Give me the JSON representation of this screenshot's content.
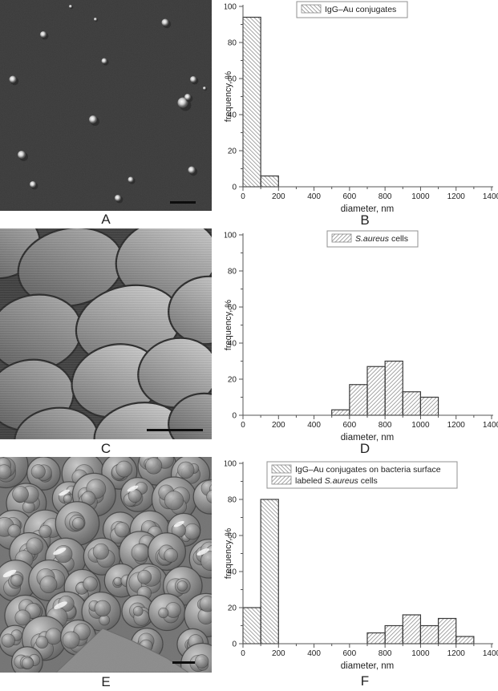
{
  "panel_labels": [
    "A",
    "B",
    "C",
    "D",
    "E",
    "F"
  ],
  "style": {
    "axis_color": "#555555",
    "tick_text_color": "#1e1e1e",
    "bar_outline": "#3a3a3a",
    "hatch_color": "#9a9a9a",
    "legend_border": "#909090",
    "afm_background": "#3b3b3b"
  },
  "chart_data": [
    {
      "panel": "B",
      "type": "bar",
      "title": "",
      "xlabel": "diameter, nm",
      "ylabel": "frequency, %",
      "xlim": [
        0,
        1400
      ],
      "ylim": [
        0,
        100
      ],
      "x_major_ticks": [
        0,
        200,
        400,
        600,
        800,
        1000,
        1200,
        1400
      ],
      "y_major_ticks": [
        0,
        20,
        40,
        60,
        80,
        100
      ],
      "x_minor_step": 100,
      "y_minor_step": 10,
      "grid": false,
      "legend_position": "top-center",
      "series": [
        {
          "name": "IgG–Au conjugates",
          "name_parts": [
            {
              "text": "IgG–Au conjugates",
              "italic": false
            }
          ],
          "hatch": "backslash",
          "bins": [
            {
              "start": 0,
              "end": 100,
              "value": 94
            },
            {
              "start": 100,
              "end": 200,
              "value": 6
            }
          ]
        }
      ]
    },
    {
      "panel": "D",
      "type": "bar",
      "title": "",
      "xlabel": "diameter, nm",
      "ylabel": "frequency, %",
      "xlim": [
        0,
        1400
      ],
      "ylim": [
        0,
        100
      ],
      "x_major_ticks": [
        0,
        200,
        400,
        600,
        800,
        1000,
        1200,
        1400
      ],
      "y_major_ticks": [
        0,
        20,
        40,
        60,
        80,
        100
      ],
      "x_minor_step": 100,
      "y_minor_step": 10,
      "grid": false,
      "legend_position": "top-center",
      "series": [
        {
          "name": "S.aureus cells",
          "name_parts": [
            {
              "text": "S.aureus",
              "italic": true
            },
            {
              "text": " cells",
              "italic": false
            }
          ],
          "hatch": "slash",
          "bins": [
            {
              "start": 500,
              "end": 600,
              "value": 3
            },
            {
              "start": 600,
              "end": 700,
              "value": 17
            },
            {
              "start": 700,
              "end": 800,
              "value": 27
            },
            {
              "start": 800,
              "end": 900,
              "value": 30
            },
            {
              "start": 900,
              "end": 1000,
              "value": 13
            },
            {
              "start": 1000,
              "end": 1100,
              "value": 10
            }
          ]
        }
      ]
    },
    {
      "panel": "F",
      "type": "bar",
      "title": "",
      "xlabel": "diameter, nm",
      "ylabel": "frequency, %",
      "xlim": [
        0,
        1400
      ],
      "ylim": [
        0,
        100
      ],
      "x_major_ticks": [
        0,
        200,
        400,
        600,
        800,
        1000,
        1200,
        1400
      ],
      "y_major_ticks": [
        0,
        20,
        40,
        60,
        80,
        100
      ],
      "x_minor_step": 100,
      "y_minor_step": 10,
      "grid": false,
      "legend_position": "top-center",
      "series": [
        {
          "name": "IgG–Au conjugates on bacteria surface",
          "name_parts": [
            {
              "text": "IgG–Au conjugates on bacteria surface",
              "italic": false
            }
          ],
          "hatch": "backslash",
          "bins": [
            {
              "start": 0,
              "end": 100,
              "value": 20
            },
            {
              "start": 100,
              "end": 200,
              "value": 80
            }
          ]
        },
        {
          "name": "labeled S.aureus cells",
          "name_parts": [
            {
              "text": "labeled ",
              "italic": false
            },
            {
              "text": "S.aureus",
              "italic": true
            },
            {
              "text": " cells",
              "italic": false
            }
          ],
          "hatch": "slash",
          "bins": [
            {
              "start": 700,
              "end": 800,
              "value": 6
            },
            {
              "start": 800,
              "end": 900,
              "value": 10
            },
            {
              "start": 900,
              "end": 1000,
              "value": 16
            },
            {
              "start": 1000,
              "end": 1100,
              "value": 10
            },
            {
              "start": 1100,
              "end": 1200,
              "value": 14
            },
            {
              "start": 1200,
              "end": 1300,
              "value": 4
            }
          ]
        }
      ]
    }
  ]
}
